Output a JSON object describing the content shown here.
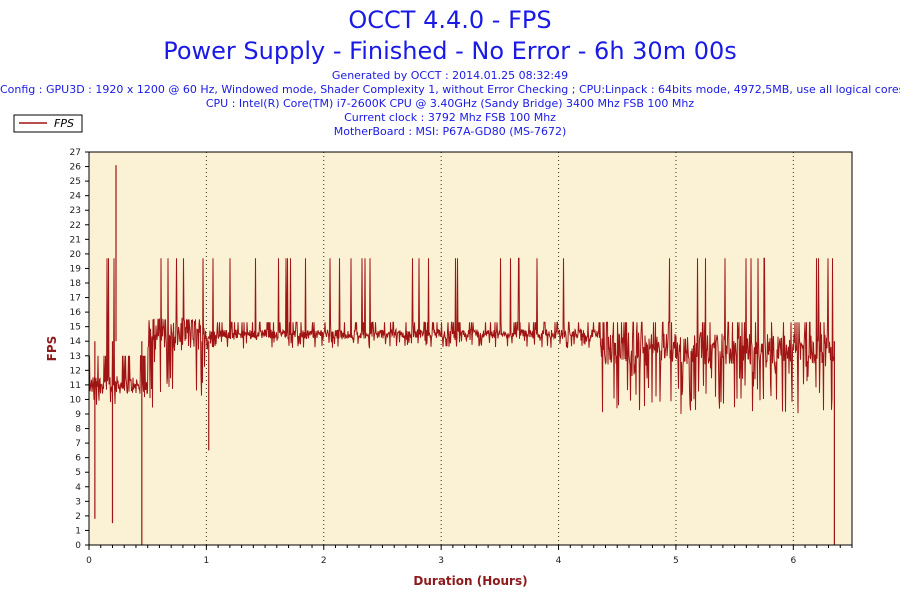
{
  "header": {
    "title": "OCCT 4.4.0 - FPS",
    "subtitle": "Power Supply - Finished - No Error - 6h 30m 00s",
    "generated": "Generated by OCCT : 2014.01.25 08:32:49",
    "config": "Config : GPU3D : 1920 x 1200 @ 60 Hz, Windowed mode, Shader Complexity 1, without Error Checking ; CPU:Linpack : 64bits mode, 4972,5MB, use all logical cores",
    "cpu": "CPU : Intel(R) Core(TM) i7-2600K CPU @ 3.40GHz (Sandy Bridge) 3400 Mhz FSB 100 Mhz",
    "clock": "Current clock : 3792 Mhz FSB 100 Mhz",
    "motherboard": "MotherBoard : MSI: P67A-GD80 (MS-7672)"
  },
  "colors": {
    "series": "#a01414",
    "plot_bg": "#fbf1d5",
    "title": "#1a1ae6",
    "axis_title": "#8b1a1a"
  },
  "chart_data": {
    "type": "line",
    "xlabel": "Duration (Hours)",
    "ylabel": "FPS",
    "xlim": [
      0,
      6.5
    ],
    "ylim": [
      0,
      27
    ],
    "xticks": [
      0,
      1,
      2,
      3,
      4,
      5,
      6
    ],
    "yticks": [
      0,
      1,
      2,
      3,
      4,
      5,
      6,
      7,
      8,
      9,
      10,
      11,
      12,
      13,
      14,
      15,
      16,
      17,
      18,
      19,
      20,
      21,
      22,
      23,
      24,
      25,
      26,
      27
    ],
    "legend": {
      "position": "top-left",
      "entries": [
        "FPS"
      ]
    },
    "grid": {
      "x": true,
      "y": false,
      "style": "dotted"
    },
    "series": [
      {
        "name": "FPS",
        "segments": [
          {
            "x_start": 0.0,
            "x_end": 0.5,
            "typical": 11.0,
            "low": 9.5,
            "high": 13.0
          },
          {
            "x_start": 0.5,
            "x_end": 1.0,
            "typical": 14.5,
            "low": 9.0,
            "high": 15.5
          },
          {
            "x_start": 1.0,
            "x_end": 4.35,
            "typical": 14.5,
            "low": 13.5,
            "high": 15.3
          },
          {
            "x_start": 4.35,
            "x_end": 6.35,
            "typical": 13.5,
            "low": 9.0,
            "high": 15.3
          }
        ],
        "spike_high": 19.7,
        "notable_points": [
          {
            "x": 0.05,
            "y": 1.8
          },
          {
            "x": 0.2,
            "y": 1.5
          },
          {
            "x": 0.23,
            "y": 26.1
          },
          {
            "x": 0.45,
            "y": 0.0
          },
          {
            "x": 1.02,
            "y": 6.5
          },
          {
            "x": 6.35,
            "y": 0.0
          }
        ]
      }
    ]
  }
}
